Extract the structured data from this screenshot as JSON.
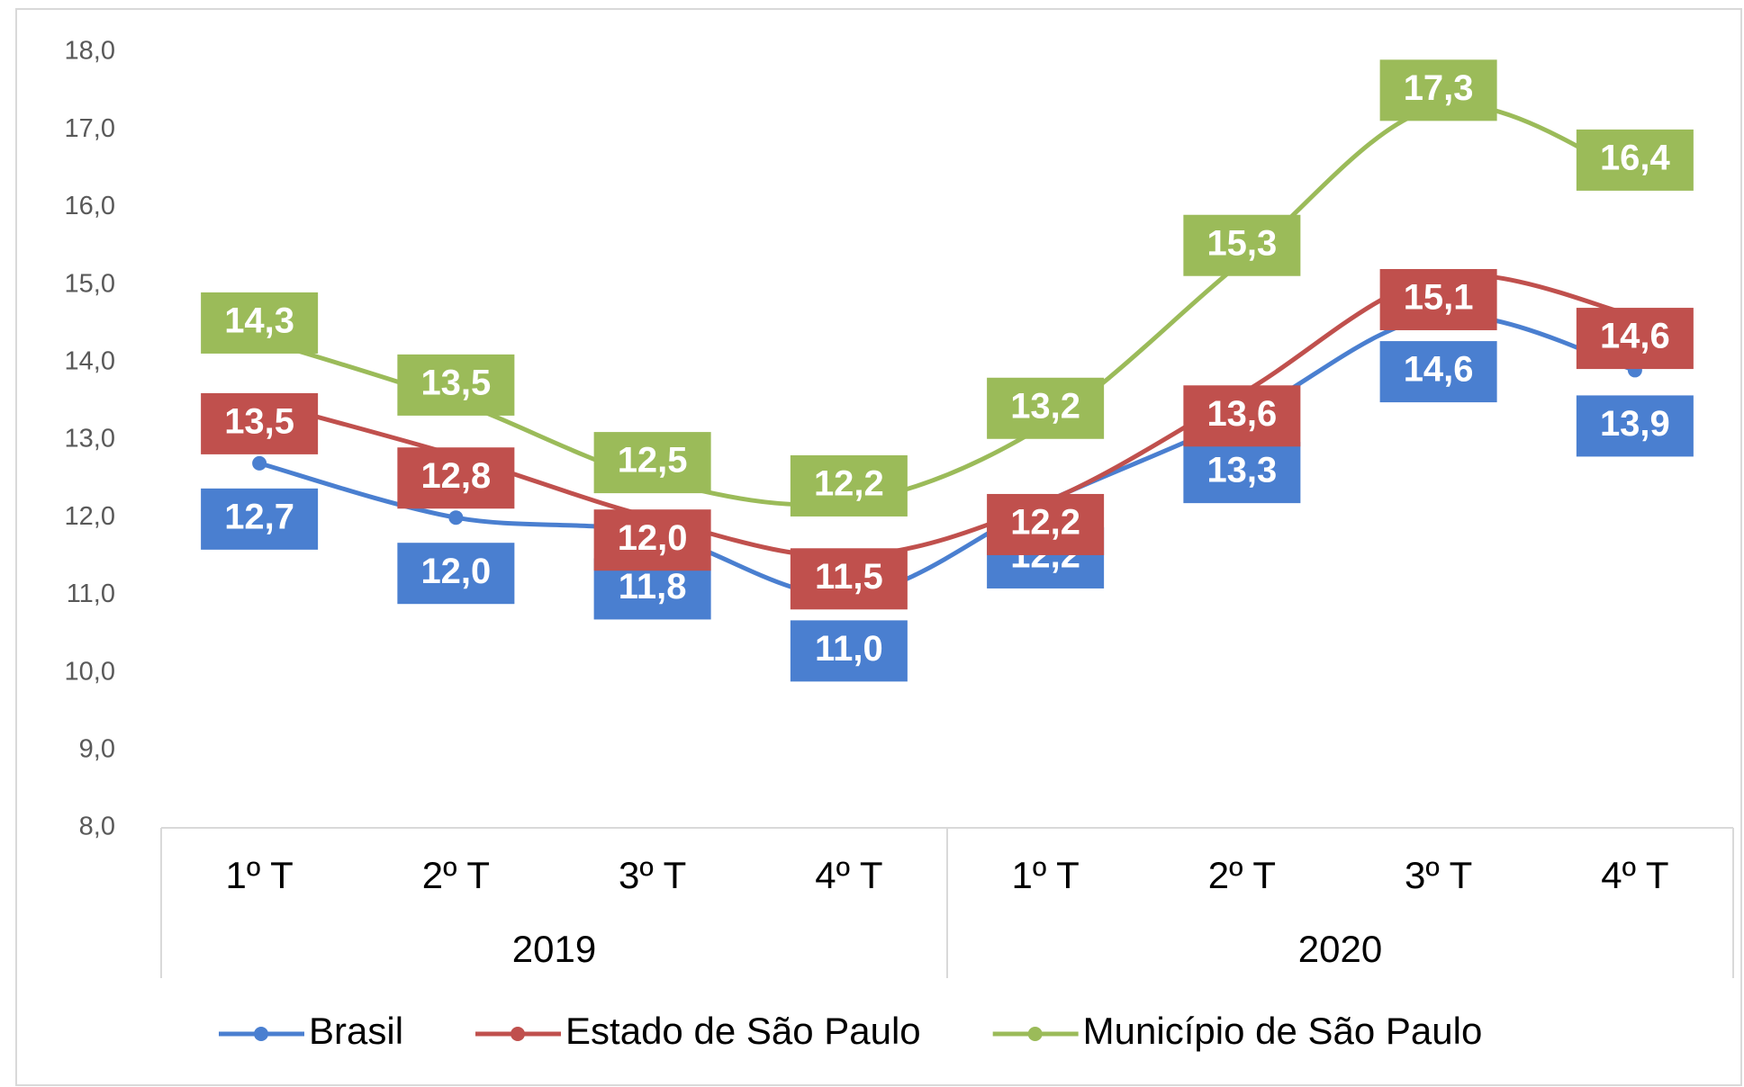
{
  "chart_data": {
    "type": "line",
    "categories": [
      "1º T",
      "2º T",
      "3º T",
      "4º T",
      "1º T",
      "2º T",
      "3º T",
      "4º T"
    ],
    "years": [
      "2019",
      "2020"
    ],
    "series": [
      {
        "name": "Brasil",
        "color": "#4a7fd0",
        "values": [
          12.7,
          12.0,
          11.8,
          11.0,
          12.2,
          13.3,
          14.6,
          13.9
        ],
        "value_labels": [
          "12,7",
          "12,0",
          "11,8",
          "11,0",
          "12,2",
          "13,3",
          "14,6",
          "13,9"
        ]
      },
      {
        "name": "Estado de São Paulo",
        "color": "#c0504d",
        "values": [
          13.5,
          12.8,
          12.0,
          11.5,
          12.2,
          13.6,
          15.1,
          14.6
        ],
        "value_labels": [
          "13,5",
          "12,8",
          "12,0",
          "11,5",
          "12,2",
          "13,6",
          "15,1",
          "14,6"
        ]
      },
      {
        "name": "Município de São Paulo",
        "color": "#9bbb59",
        "values": [
          14.3,
          13.5,
          12.5,
          12.2,
          13.2,
          15.3,
          17.3,
          16.4
        ],
        "value_labels": [
          "14,3",
          "13,5",
          "12,5",
          "12,2",
          "13,2",
          "15,3",
          "17,3",
          "16,4"
        ]
      }
    ],
    "ylim": [
      8,
      18
    ],
    "yticks": [
      {
        "value": 8,
        "label": "8,0"
      },
      {
        "value": 9,
        "label": "9,0"
      },
      {
        "value": 10,
        "label": "10,0"
      },
      {
        "value": 11,
        "label": "11,0"
      },
      {
        "value": 12,
        "label": "12,0"
      },
      {
        "value": 13,
        "label": "13,0"
      },
      {
        "value": 14,
        "label": "14,0"
      },
      {
        "value": 15,
        "label": "15,0"
      },
      {
        "value": 16,
        "label": "16,0"
      },
      {
        "value": 17,
        "label": "17,0"
      },
      {
        "value": 18,
        "label": "18,0"
      }
    ],
    "grid": false,
    "legend": "bottom",
    "smooth": true
  }
}
